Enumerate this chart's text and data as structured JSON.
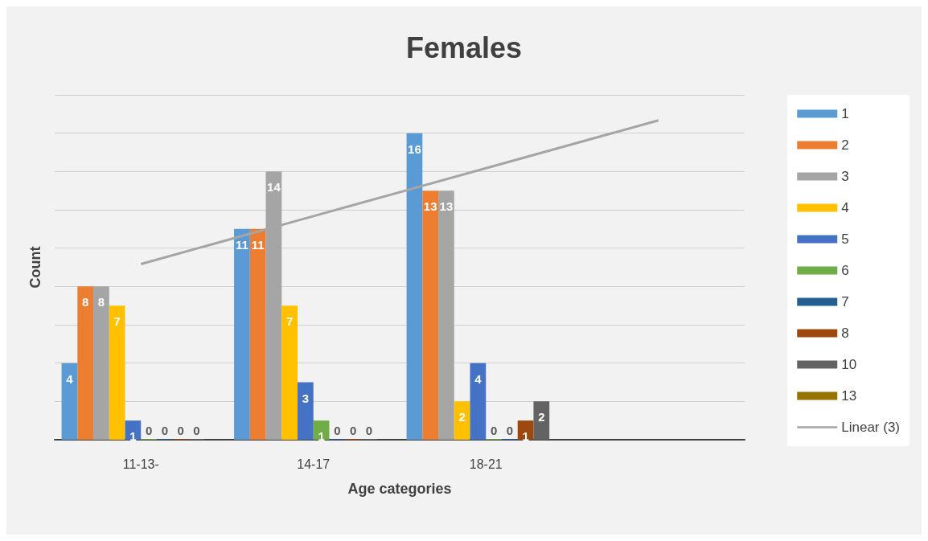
{
  "chart_data": {
    "type": "bar",
    "title": "Females",
    "xlabel": "Age categories",
    "ylabel": "Count",
    "categories": [
      "11-13-",
      "14-17",
      "18-21",
      null
    ],
    "series": [
      {
        "name": "1",
        "color": "#5b9bd5",
        "values": [
          4,
          11,
          16,
          null
        ]
      },
      {
        "name": "2",
        "color": "#ed7d31",
        "values": [
          8,
          11,
          13,
          null
        ]
      },
      {
        "name": "3",
        "color": "#a5a5a5",
        "values": [
          8,
          14,
          13,
          null
        ]
      },
      {
        "name": "4",
        "color": "#ffc000",
        "values": [
          7,
          7,
          2,
          null
        ]
      },
      {
        "name": "5",
        "color": "#4472c4",
        "values": [
          1,
          3,
          4,
          null
        ]
      },
      {
        "name": "6",
        "color": "#70ad47",
        "values": [
          0,
          1,
          0,
          null
        ]
      },
      {
        "name": "7",
        "color": "#255e91",
        "values": [
          0,
          0,
          0,
          null
        ]
      },
      {
        "name": "8",
        "color": "#9e480e",
        "values": [
          0,
          0,
          1,
          null
        ]
      },
      {
        "name": "10",
        "color": "#636363",
        "values": [
          0,
          0,
          2,
          null
        ]
      },
      {
        "name": "13",
        "color": "#997300",
        "values": [
          null,
          null,
          null,
          null
        ]
      },
      {
        "name": "Linear (3)",
        "type": "line",
        "color": "#a5a5a5",
        "marker": "none",
        "values": [
          9.17,
          11.67,
          14.17,
          16.67
        ],
        "value_labels": [
          null,
          null,
          null,
          null
        ]
      }
    ],
    "ylim": [
      0,
      18
    ],
    "yticks": [
      0,
      2,
      4,
      6,
      8,
      10,
      12,
      14,
      16,
      18
    ],
    "tick_labels": "x",
    "grid": "y",
    "legend": "right",
    "data_labels": true
  }
}
